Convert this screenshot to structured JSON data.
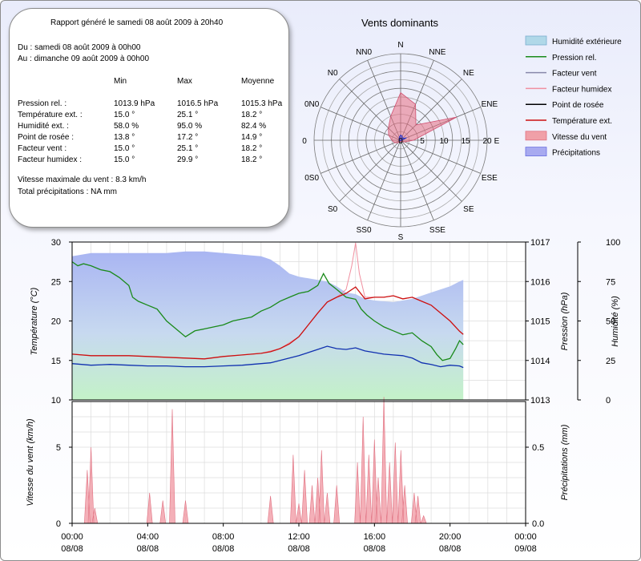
{
  "report": {
    "title": "Rapport généré le samedi 08 août 2009 à 20h40",
    "period_from": "Du : samedi 08 août 2009 à 00h00",
    "period_to": "Au : dimanche 09 août 2009 à 00h00",
    "col_headers": [
      "Min",
      "Max",
      "Moyenne"
    ],
    "rows": [
      {
        "label": "Pression rel. :",
        "min": "1013.9 hPa",
        "max": "1016.5 hPa",
        "avg": "1015.3 hPa"
      },
      {
        "label": "Température ext. :",
        "min": "15.0 °",
        "max": "25.1 °",
        "avg": "18.2 °"
      },
      {
        "label": "Humidité ext. :",
        "min": "58.0 %",
        "max": "95.0 %",
        "avg": "82.4 %"
      },
      {
        "label": "Point de rosée :",
        "min": "13.8 °",
        "max": "17.2 °",
        "avg": "14.9 °"
      },
      {
        "label": "Facteur vent :",
        "min": "15.0 °",
        "max": "25.1 °",
        "avg": "18.2 °"
      },
      {
        "label": "Facteur humidex :",
        "min": "15.0 °",
        "max": "29.9 °",
        "avg": "18.2 °"
      }
    ],
    "max_wind": "Vitesse maximale du vent : 8.3 km/h",
    "total_precip": "Total précipitations : NA mm"
  },
  "chart_data": [
    {
      "type": "radar",
      "title": "Vents dominants",
      "directions": [
        "N",
        "NNE",
        "NE",
        "ENE",
        "E",
        "ESE",
        "SE",
        "SSE",
        "S",
        "SS0",
        "S0",
        "0S0",
        "0",
        "0N0",
        "N0",
        "NN0"
      ],
      "radial_ticks": [
        0,
        5,
        10,
        15,
        20
      ],
      "rmax": 20,
      "series": [
        {
          "name": "Vitesse du vent",
          "color": "#e06070",
          "values": [
            11,
            9,
            5,
            14,
            3,
            1,
            0.5,
            0.3,
            0.3,
            0.3,
            0.8,
            1.5,
            2,
            3,
            4,
            6
          ]
        },
        {
          "name": "Précipitations",
          "color": "#2030c0",
          "values": [
            1.2,
            1,
            0.6,
            1.5,
            0.3,
            0.1,
            0.1,
            0.1,
            0.1,
            0.1,
            0.2,
            0.3,
            0.3,
            0.4,
            0.5,
            0.8
          ]
        }
      ]
    },
    {
      "type": "line",
      "ylabel_left": "Température (°C)",
      "ylabel_right_pressure": "Pression (hPa)",
      "ylabel_right_humidity": "Humidité (%)",
      "ylim_temp": [
        10,
        30
      ],
      "yticks_temp": [
        10,
        15,
        20,
        25,
        30
      ],
      "ylim_pressure": [
        1013,
        1017
      ],
      "yticks_pressure": [
        1013,
        1014,
        1015,
        1016,
        1017
      ],
      "ylim_humidity": [
        0,
        100
      ],
      "yticks_humidity": [
        0,
        25,
        50,
        75,
        100
      ],
      "xlim_hours": [
        0,
        24
      ],
      "series": [
        {
          "name": "Humidité extérieure",
          "axis": "humidity",
          "color": "#8fa8f0",
          "x": [
            0,
            0.5,
            1,
            2,
            3,
            4,
            5,
            6,
            7,
            8,
            9,
            10,
            10.5,
            11,
            11.5,
            12,
            12.5,
            13,
            13.5,
            14,
            14.5,
            15,
            15.5,
            16,
            17,
            17.5,
            18,
            18.5,
            19,
            19.5,
            20,
            20.5,
            20.7
          ],
          "y": [
            91,
            92,
            93,
            93,
            93,
            93,
            93,
            94,
            94,
            93,
            92,
            91,
            89,
            85,
            80,
            78,
            77,
            76,
            75,
            72,
            68,
            67,
            64,
            63,
            62,
            63,
            64,
            66,
            68,
            70,
            72,
            75,
            76
          ]
        },
        {
          "name": "Pression rel.",
          "axis": "pressure",
          "color": "#1a8a1a",
          "x": [
            0,
            0.3,
            0.6,
            1,
            1.5,
            2,
            2.5,
            3,
            3.2,
            3.5,
            4,
            4.5,
            5,
            5.5,
            6,
            6.5,
            7,
            7.5,
            8,
            8.5,
            9,
            9.5,
            10,
            10.5,
            11,
            11.5,
            12,
            12.5,
            13,
            13.3,
            13.6,
            14,
            14.5,
            15,
            15.3,
            15.6,
            16,
            16.5,
            17,
            17.5,
            18,
            18.5,
            19,
            19.3,
            19.6,
            20,
            20.3,
            20.5,
            20.7
          ],
          "y": [
            1016.5,
            1016.4,
            1016.45,
            1016.4,
            1016.3,
            1016.25,
            1016.1,
            1015.9,
            1015.6,
            1015.5,
            1015.4,
            1015.3,
            1015.0,
            1014.8,
            1014.6,
            1014.75,
            1014.8,
            1014.85,
            1014.9,
            1015.0,
            1015.05,
            1015.1,
            1015.25,
            1015.35,
            1015.5,
            1015.6,
            1015.7,
            1015.75,
            1015.9,
            1016.2,
            1015.95,
            1015.8,
            1015.6,
            1015.55,
            1015.3,
            1015.15,
            1015.0,
            1014.85,
            1014.75,
            1014.65,
            1014.7,
            1014.5,
            1014.35,
            1014.15,
            1014.0,
            1014.05,
            1014.3,
            1014.5,
            1014.4
          ]
        },
        {
          "name": "Facteur vent",
          "axis": "temp",
          "color": "#8888aa",
          "x": [
            0,
            1,
            2,
            3,
            4,
            5,
            6,
            7,
            8,
            9,
            10,
            11,
            12,
            12.5,
            13,
            13.5,
            14,
            14.5,
            15,
            15.5,
            16,
            16.5,
            17,
            17.5,
            18,
            18.5,
            19,
            19.5,
            20,
            20.5,
            20.7
          ],
          "y": [
            15.8,
            15.6,
            15.6,
            15.6,
            15.5,
            15.4,
            15.3,
            15.2,
            15.5,
            15.7,
            15.9,
            16.5,
            18,
            19.5,
            21,
            22.4,
            23,
            23.5,
            24.3,
            22.8,
            23,
            23,
            23.2,
            22.8,
            23,
            22.5,
            22,
            21,
            20,
            18.7,
            18.3
          ]
        },
        {
          "name": "Facteur humidex",
          "axis": "temp",
          "color": "#f090a0",
          "x": [
            0,
            1,
            2,
            3,
            4,
            5,
            6,
            7,
            8,
            9,
            10,
            11,
            12,
            12.5,
            13,
            13.5,
            14,
            14.5,
            14.8,
            15,
            15.2,
            15.5,
            16,
            16.5,
            17,
            17.5,
            18,
            18.5,
            19,
            19.5,
            20,
            20.5,
            20.7
          ],
          "y": [
            15.8,
            15.6,
            15.6,
            15.6,
            15.5,
            15.4,
            15.3,
            15.2,
            15.5,
            15.7,
            15.9,
            16.5,
            18,
            19.5,
            21,
            22.4,
            23,
            24,
            27,
            29.9,
            26,
            23,
            23,
            23,
            23.2,
            22.8,
            23,
            22.5,
            22,
            21,
            20,
            18.7,
            18.3
          ]
        },
        {
          "name": "Point de rosée",
          "axis": "temp",
          "color": "#000000",
          "x": [
            0,
            20.7
          ],
          "y": [
            14.4,
            14.1
          ],
          "hidden": true
        },
        {
          "name": "Température ext.",
          "axis": "temp",
          "color": "#cc1010",
          "x": [
            0,
            1,
            2,
            3,
            4,
            5,
            6,
            7,
            8,
            9,
            10,
            10.5,
            11,
            11.5,
            12,
            12.5,
            13,
            13.5,
            14,
            14.5,
            15,
            15.5,
            16,
            16.5,
            17,
            17.5,
            18,
            18.5,
            19,
            19.5,
            20,
            20.5,
            20.7
          ],
          "y": [
            15.8,
            15.6,
            15.6,
            15.6,
            15.5,
            15.4,
            15.3,
            15.2,
            15.5,
            15.7,
            15.9,
            16.1,
            16.5,
            17.1,
            18,
            19.5,
            21,
            22.4,
            23,
            23.5,
            24.3,
            22.8,
            23,
            23,
            23.2,
            22.8,
            23,
            22.5,
            22,
            21,
            20,
            18.7,
            18.3
          ]
        },
        {
          "name": "Point de rosée (tracé)",
          "axis": "temp",
          "color": "#1030b0",
          "x": [
            0,
            1,
            2,
            3,
            4,
            5,
            6,
            7,
            8,
            9,
            10,
            10.5,
            11,
            11.5,
            12,
            12.5,
            13,
            13.5,
            14,
            14.5,
            15,
            15.5,
            16,
            16.5,
            17,
            17.5,
            18,
            18.5,
            19,
            19.5,
            20,
            20.5,
            20.7
          ],
          "y": [
            14.6,
            14.4,
            14.5,
            14.4,
            14.3,
            14.3,
            14.2,
            14.2,
            14.3,
            14.4,
            14.6,
            14.7,
            15.0,
            15.3,
            15.6,
            16.0,
            16.4,
            16.8,
            16.5,
            16.4,
            16.6,
            16.2,
            16.0,
            15.8,
            15.7,
            15.6,
            15.3,
            14.7,
            14.5,
            14.2,
            14.4,
            14.3,
            14.1
          ]
        }
      ]
    },
    {
      "type": "area",
      "ylabel_left": "Vitesse du vent (km/h)",
      "ylabel_right": "Précipitations (mm)",
      "ylim_wind": [
        0,
        8
      ],
      "yticks_wind": [
        0,
        5
      ],
      "ylim_precip": [
        0,
        0.8
      ],
      "yticks_precip": [
        0.0,
        0.5
      ],
      "x_ticks_labels": [
        [
          "00:00",
          "08/08"
        ],
        [
          "04:00",
          "08/08"
        ],
        [
          "08:00",
          "08/08"
        ],
        [
          "12:00",
          "08/08"
        ],
        [
          "16:00",
          "08/08"
        ],
        [
          "20:00",
          "08/08"
        ],
        [
          "00:00",
          "09/08"
        ]
      ],
      "wind_peaks": [
        [
          0.8,
          3.5
        ],
        [
          1.0,
          5.0
        ],
        [
          1.2,
          1.0
        ],
        [
          4.1,
          2.0
        ],
        [
          4.8,
          1.5
        ],
        [
          5.3,
          7.5
        ],
        [
          6.0,
          1.5
        ],
        [
          10.5,
          1.8
        ],
        [
          11.7,
          4.5
        ],
        [
          12.0,
          1.3
        ],
        [
          12.3,
          3.5
        ],
        [
          12.7,
          2.5
        ],
        [
          13.0,
          3.0
        ],
        [
          13.2,
          4.8
        ],
        [
          13.5,
          2.0
        ],
        [
          14.0,
          2.5
        ],
        [
          15.1,
          4.0
        ],
        [
          15.4,
          7.0
        ],
        [
          15.7,
          4.5
        ],
        [
          16.0,
          5.5
        ],
        [
          16.2,
          3.0
        ],
        [
          16.5,
          8.3
        ],
        [
          16.8,
          4.0
        ],
        [
          17.1,
          5.3
        ],
        [
          17.4,
          4.8
        ],
        [
          17.6,
          2.5
        ],
        [
          18.1,
          2.0
        ],
        [
          18.3,
          1.8
        ],
        [
          18.6,
          0.5
        ]
      ]
    }
  ],
  "legend": [
    {
      "label": "Humidité extérieure",
      "kind": "area",
      "color": "#b0d8e8",
      "edge": "#7aaed0"
    },
    {
      "label": "Pression rel.",
      "kind": "line",
      "color": "#1a8a1a"
    },
    {
      "label": "Facteur vent",
      "kind": "line",
      "color": "#8888aa"
    },
    {
      "label": "Facteur humidex",
      "kind": "line",
      "color": "#f090a0"
    },
    {
      "label": "Point de rosée",
      "kind": "line",
      "color": "#000000"
    },
    {
      "label": "Température ext.",
      "kind": "line",
      "color": "#cc1010"
    },
    {
      "label": "Vitesse du vent",
      "kind": "area",
      "color": "#f0a0a8",
      "edge": "#e07080"
    },
    {
      "label": "Précipitations",
      "kind": "area",
      "color": "#a8aaf0",
      "edge": "#6a70e0"
    }
  ]
}
